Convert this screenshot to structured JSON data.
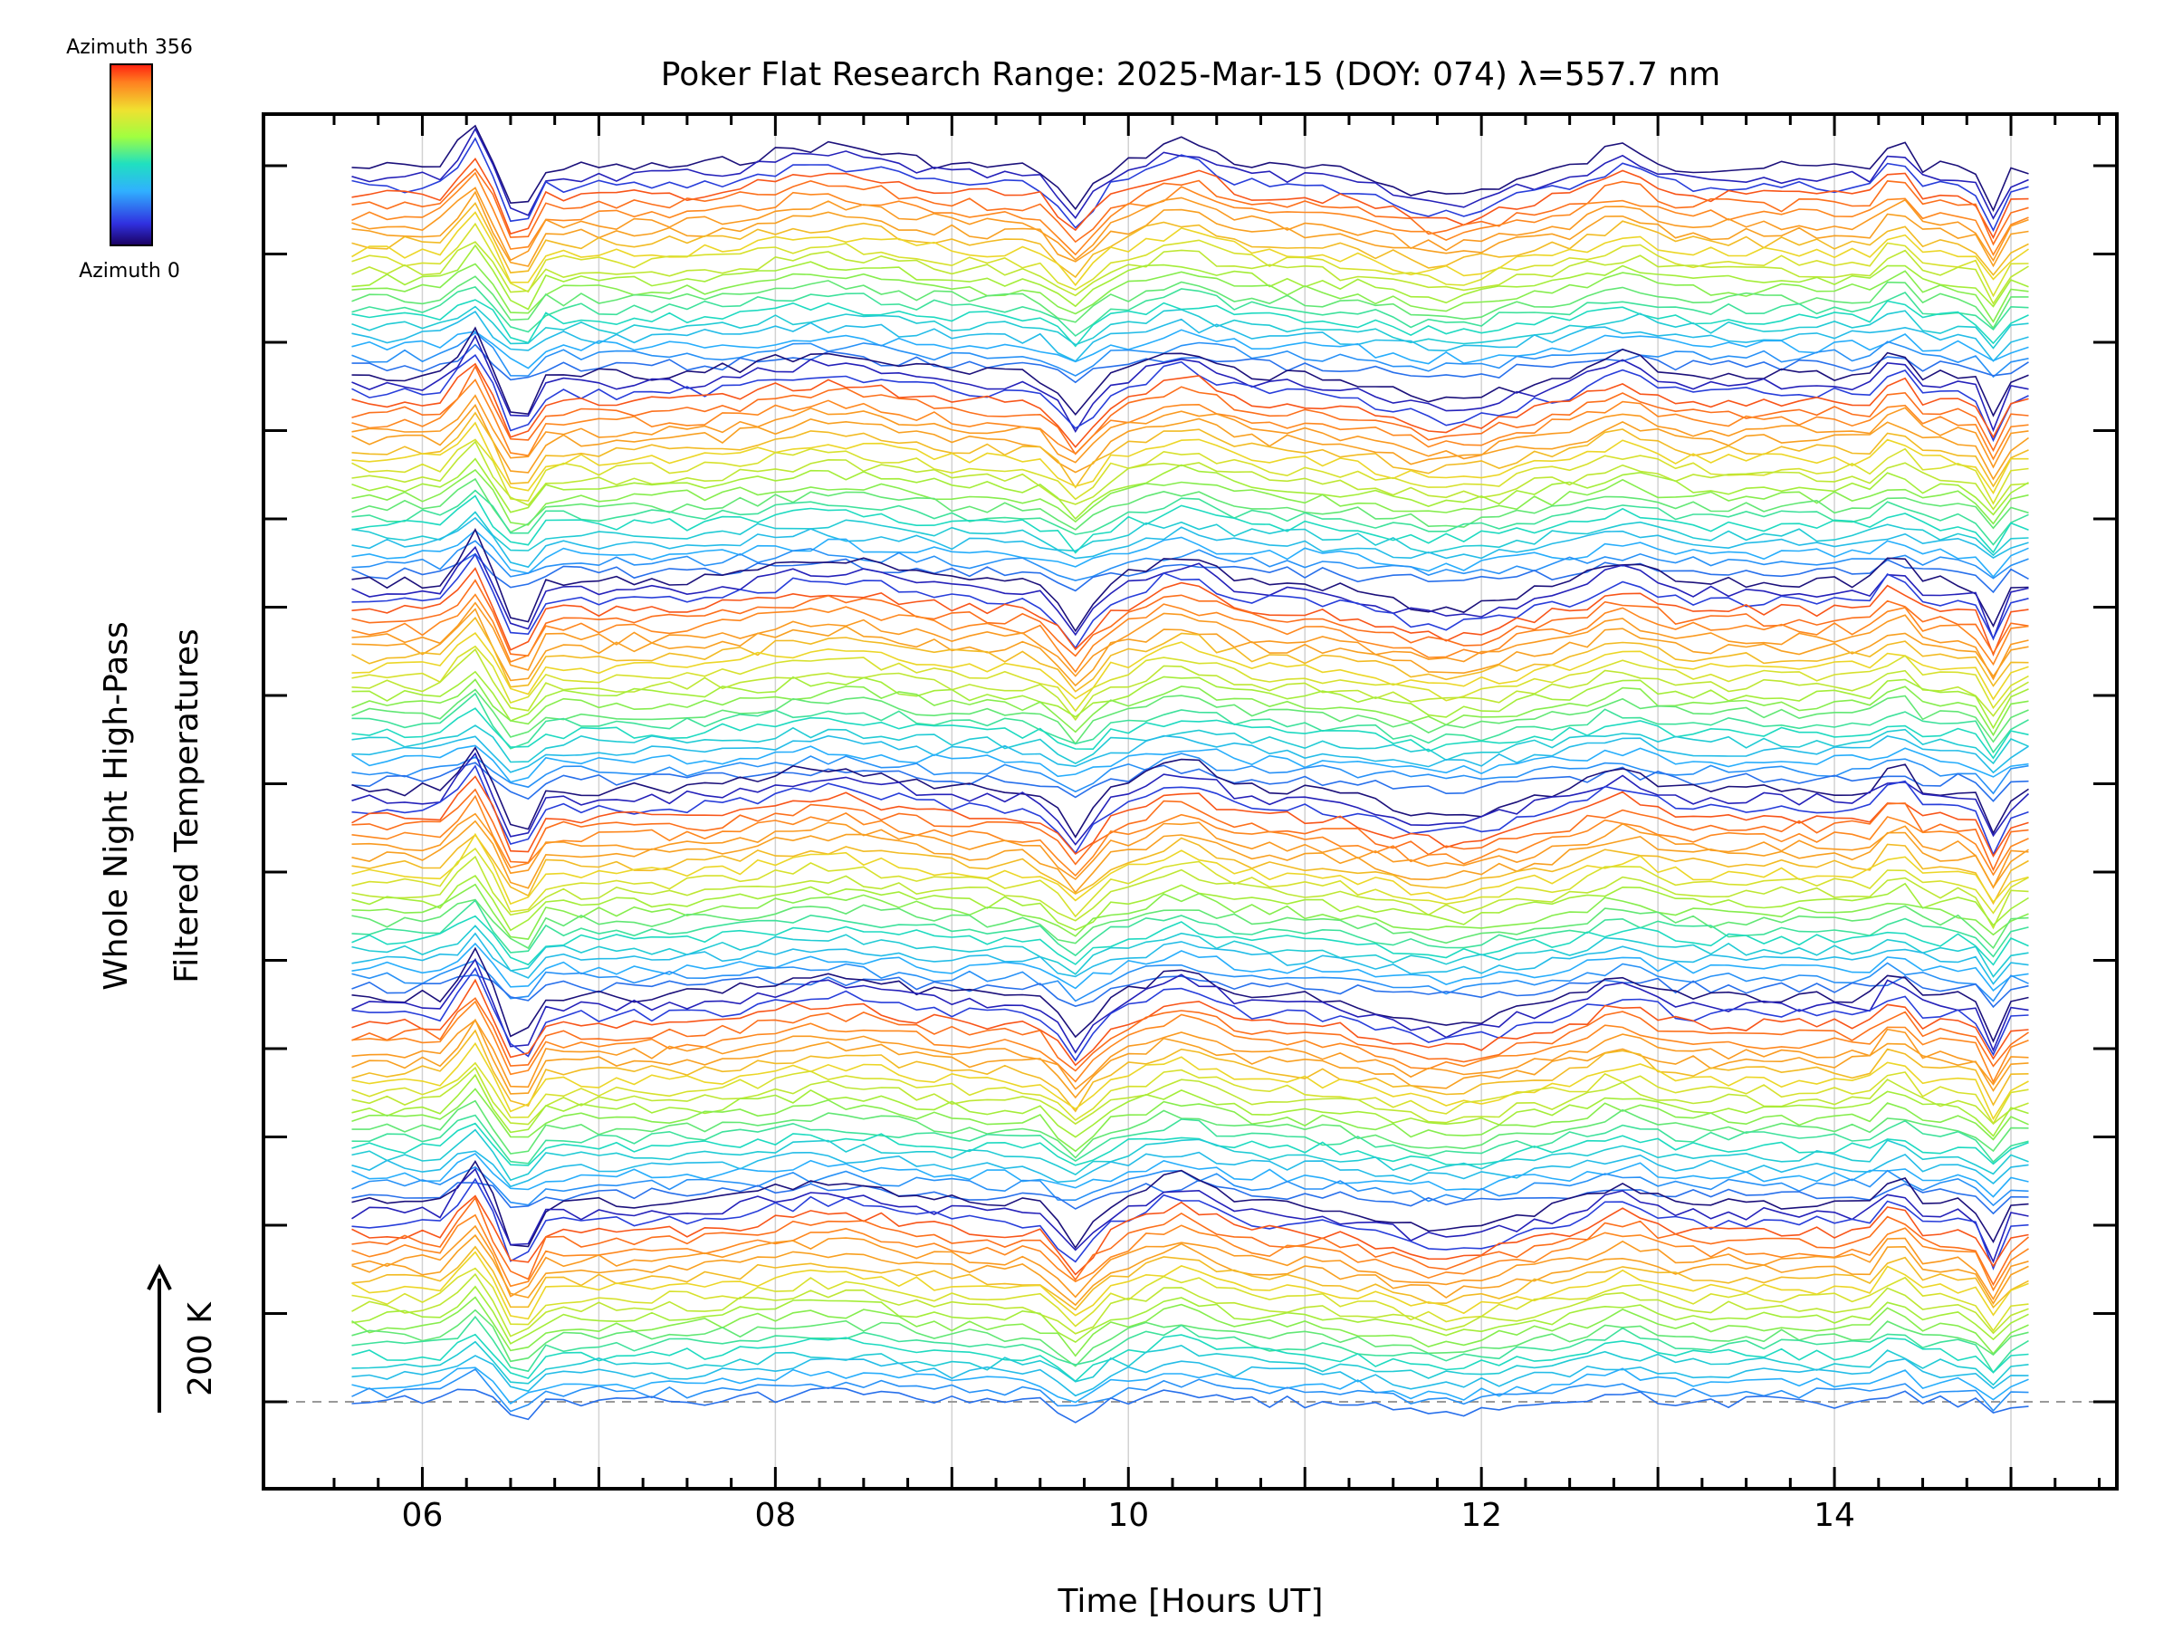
{
  "chart_data": {
    "type": "line",
    "title": "Poker Flat Research Range: 2025-Mar-15 (DOY: 074) λ=557.7 nm",
    "xlabel": "Time [Hours UT]",
    "ylabel_line1": "Whole Night High-Pass",
    "ylabel_line2": "Filtered Temperatures",
    "scale_bar_label": "200 K",
    "xlim": [
      5.1,
      15.6
    ],
    "x_ticks": [
      "06",
      "08",
      "10",
      "12",
      "14"
    ],
    "x_tick_values": [
      6,
      8,
      10,
      12,
      14
    ],
    "grid": "vertical, every 1 hour",
    "colorbar": {
      "top_label": "Azimuth 356",
      "bottom_label": "Azimuth 0",
      "colormap": "rainbow (blue-black to red)",
      "min": 0,
      "max": 356
    },
    "series_structure": {
      "description": "Stacked high-pass filtered temperature traces, one per azimuth, grouped in six stacks; each trace offset vertically",
      "stacks": 6,
      "traces_per_stack": 22,
      "x_start": 5.6,
      "x_end": 15.1
    },
    "baseline_label": "dashed reference line at lowest trace"
  },
  "colors": {
    "background": "#ffffff",
    "axes": "#000000",
    "grid": "#c8c8c8",
    "baseline": "#888888"
  }
}
